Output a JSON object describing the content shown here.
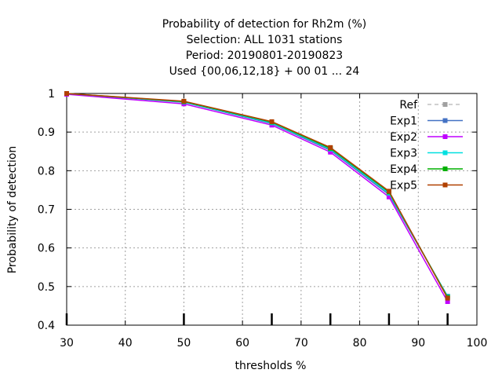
{
  "chart_data": {
    "type": "line",
    "title_lines": [
      "Probability of detection  for Rh2m (%)",
      "Selection: ALL   1031 stations",
      "Period: 20190801-20190823",
      "Used {00,06,12,18} + 00 01 ... 24"
    ],
    "xlabel": "thresholds %",
    "ylabel": "Probability of detection",
    "xlim": [
      30,
      100
    ],
    "ylim": [
      0.4,
      1.0
    ],
    "xticks": [
      "30",
      "40",
      "50",
      "60",
      "70",
      "80",
      "90",
      "100"
    ],
    "yticks": [
      "0.4",
      "0.5",
      "0.6",
      "0.7",
      "0.8",
      "0.9",
      "1"
    ],
    "grid": true,
    "legend_position": "top-right",
    "x": [
      30,
      50,
      65,
      75,
      85,
      95
    ],
    "series": [
      {
        "name": "Ref",
        "color": "#a0a0a0",
        "dashed": true,
        "values": [
          1.0,
          0.977,
          0.922,
          0.853,
          0.738,
          0.475
        ]
      },
      {
        "name": "Exp1",
        "color": "#4472c4",
        "dashed": false,
        "values": [
          1.0,
          0.977,
          0.922,
          0.853,
          0.738,
          0.475
        ]
      },
      {
        "name": "Exp2",
        "color": "#c000ff",
        "dashed": false,
        "values": [
          0.998,
          0.973,
          0.918,
          0.848,
          0.732,
          0.461
        ]
      },
      {
        "name": "Exp3",
        "color": "#00e0e0",
        "dashed": false,
        "values": [
          1.0,
          0.978,
          0.924,
          0.856,
          0.742,
          0.474
        ]
      },
      {
        "name": "Exp4",
        "color": "#00b000",
        "dashed": false,
        "values": [
          1.0,
          0.979,
          0.926,
          0.858,
          0.745,
          0.472
        ]
      },
      {
        "name": "Exp5",
        "color": "#b04000",
        "dashed": false,
        "values": [
          1.0,
          0.98,
          0.927,
          0.86,
          0.747,
          0.47
        ]
      }
    ]
  }
}
